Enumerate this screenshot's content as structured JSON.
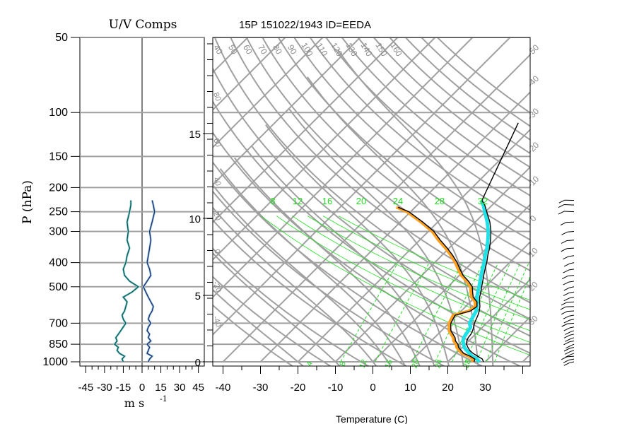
{
  "header": {
    "left_title": "U/V Comps",
    "right_title": "15P 151022/1943 ID=EEDA",
    "y_axis_label": "P (hPa)",
    "left_x_label": "m s",
    "left_x_label_exp": "-1",
    "bottom_label": "Temperature (C)"
  },
  "colors": {
    "grid": "#a0a0a0",
    "temperature": "#000000",
    "dewpoint_shade": "#ffa020",
    "virtual_shade": "#20e0e8",
    "green": "#22dd22",
    "u_component": "#2a2a7a",
    "v_component": "#0a5a5a"
  },
  "chart_data": [
    {
      "type": "line",
      "title": "U/V Comps",
      "ylabel": "P (hPa)",
      "xlabel": "m s -1",
      "y_scale": "log",
      "ylim": [
        1000,
        50
      ],
      "xlim": [
        -50,
        50
      ],
      "x_ticks": [
        "-45",
        "-30",
        "-15",
        "0",
        "15",
        "30",
        "45"
      ],
      "pressure_ticks": [
        "50",
        "100",
        "150",
        "200",
        "250",
        "300",
        "400",
        "500",
        "700",
        "850",
        "1000"
      ],
      "series": [
        {
          "color": "#2a2a7a",
          "points": [
            [
              1000,
              5
            ],
            [
              975,
              6
            ],
            [
              950,
              8
            ],
            [
              925,
              4
            ],
            [
              900,
              5
            ],
            [
              875,
              6
            ],
            [
              850,
              4
            ],
            [
              825,
              7
            ],
            [
              800,
              5
            ],
            [
              775,
              6
            ],
            [
              750,
              4
            ],
            [
              725,
              5
            ],
            [
              700,
              7
            ],
            [
              675,
              5
            ],
            [
              650,
              6
            ],
            [
              625,
              8
            ],
            [
              600,
              9
            ],
            [
              575,
              7
            ],
            [
              550,
              5
            ],
            [
              525,
              3
            ],
            [
              500,
              1
            ],
            [
              475,
              4
            ],
            [
              450,
              7
            ],
            [
              425,
              6
            ],
            [
              400,
              4
            ],
            [
              375,
              5
            ],
            [
              350,
              6
            ],
            [
              325,
              7
            ],
            [
              300,
              6
            ],
            [
              275,
              8
            ],
            [
              250,
              10
            ],
            [
              235,
              9
            ],
            [
              225,
              8
            ]
          ]
        },
        {
          "color": "#0a5a5a",
          "points": [
            [
              1000,
              -15
            ],
            [
              975,
              -16
            ],
            [
              950,
              -14
            ],
            [
              925,
              -18
            ],
            [
              900,
              -20
            ],
            [
              875,
              -19
            ],
            [
              850,
              -22
            ],
            [
              825,
              -20
            ],
            [
              800,
              -21
            ],
            [
              775,
              -19
            ],
            [
              750,
              -17
            ],
            [
              725,
              -15
            ],
            [
              700,
              -13
            ],
            [
              675,
              -15
            ],
            [
              650,
              -16
            ],
            [
              625,
              -14
            ],
            [
              600,
              -13
            ],
            [
              575,
              -12
            ],
            [
              550,
              -15
            ],
            [
              525,
              -8
            ],
            [
              500,
              -3
            ],
            [
              475,
              -10
            ],
            [
              450,
              -14
            ],
            [
              425,
              -15
            ],
            [
              400,
              -13
            ],
            [
              375,
              -12
            ],
            [
              350,
              -10
            ],
            [
              325,
              -12
            ],
            [
              300,
              -11
            ],
            [
              275,
              -12
            ],
            [
              250,
              -10
            ],
            [
              235,
              -9
            ],
            [
              225,
              -9
            ]
          ]
        }
      ]
    },
    {
      "type": "line",
      "title": "15P 151022/1943 ID=EEDA",
      "xlabel": "Temperature (C)",
      "y_scale": "log",
      "ylim": [
        1000,
        50
      ],
      "xlim": [
        -45,
        45
      ],
      "x_ticks": [
        "-40",
        "-30",
        "-20",
        "-10",
        "0",
        "10",
        "20",
        "30"
      ],
      "height_ticks_km": [
        "0",
        "5",
        "10",
        "15"
      ],
      "mixing_ratio_labels": [
        "8",
        "12",
        "16",
        "20",
        "24",
        "28",
        "32"
      ],
      "dry_adiabat_labels": [
        "40",
        "50",
        "60",
        "70",
        "80",
        "90",
        "100",
        "110",
        "120",
        "130",
        "140",
        "150",
        "160"
      ],
      "moist_adiabat_labels": [
        "50",
        "40",
        "30",
        "20",
        "10",
        "0",
        "10",
        "20",
        "30"
      ],
      "right_skew_labels": [
        "-50",
        "-40",
        "-30",
        "-20",
        "-10",
        "0",
        "10",
        "20",
        "30"
      ],
      "bottom_green_labels": [
        "4",
        "8",
        "12",
        "16",
        "20",
        "24",
        "28"
      ],
      "left_grey_labels": [
        "80",
        "60",
        "40",
        "20",
        "0",
        "-20",
        "-40"
      ],
      "temperature": [
        [
          1000,
          29.5
        ],
        [
          975,
          28.5
        ],
        [
          950,
          26.5
        ],
        [
          925,
          24.5
        ],
        [
          900,
          22.8
        ],
        [
          875,
          21.5
        ],
        [
          850,
          20.3
        ],
        [
          825,
          19.5
        ],
        [
          800,
          19.0
        ],
        [
          775,
          18.8
        ],
        [
          750,
          18.3
        ],
        [
          725,
          17.6
        ],
        [
          700,
          16.8
        ],
        [
          675,
          16.2
        ],
        [
          650,
          15.6
        ],
        [
          625,
          14.8
        ],
        [
          600,
          13.8
        ],
        [
          575,
          12.5
        ],
        [
          550,
          11.2
        ],
        [
          525,
          10.2
        ],
        [
          500,
          9.0
        ],
        [
          475,
          7.8
        ],
        [
          450,
          6.5
        ],
        [
          425,
          5.2
        ],
        [
          400,
          3.9
        ],
        [
          375,
          2.3
        ],
        [
          350,
          0.8
        ],
        [
          325,
          -1.1
        ],
        [
          300,
          -3.3
        ],
        [
          275,
          -6.1
        ],
        [
          250,
          -9.7
        ],
        [
          235,
          -12.0
        ],
        [
          225,
          -14.0
        ],
        [
          110,
          -25.0
        ]
      ],
      "temperature_shade": [
        [
          1000,
          28.5
        ],
        [
          975,
          27.0
        ],
        [
          950,
          25.0
        ],
        [
          925,
          23.5
        ],
        [
          900,
          22.0
        ],
        [
          875,
          20.5
        ],
        [
          850,
          19.5
        ],
        [
          825,
          18.5
        ],
        [
          800,
          17.8
        ],
        [
          775,
          17.5
        ],
        [
          750,
          17.2
        ],
        [
          725,
          16.8
        ],
        [
          700,
          15.5
        ],
        [
          675,
          15.0
        ],
        [
          650,
          14.5
        ],
        [
          625,
          14.0
        ],
        [
          600,
          13.0
        ],
        [
          575,
          11.8
        ],
        [
          550,
          10.5
        ],
        [
          525,
          9.4
        ],
        [
          500,
          8.3
        ],
        [
          475,
          7.1
        ],
        [
          450,
          5.8
        ],
        [
          425,
          4.5
        ],
        [
          400,
          3.2
        ],
        [
          375,
          1.6
        ],
        [
          350,
          0.1
        ],
        [
          325,
          -1.8
        ],
        [
          300,
          -4.0
        ],
        [
          275,
          -6.8
        ],
        [
          250,
          -10.2
        ],
        [
          235,
          -12.4
        ],
        [
          225,
          -14.2
        ]
      ],
      "dewpoint": [
        [
          1000,
          27.0
        ],
        [
          975,
          26.5
        ],
        [
          950,
          24.5
        ],
        [
          925,
          22.0
        ],
        [
          900,
          20.5
        ],
        [
          875,
          19.0
        ],
        [
          850,
          18.0
        ],
        [
          825,
          16.5
        ],
        [
          800,
          15.5
        ],
        [
          775,
          14.0
        ],
        [
          750,
          12.5
        ],
        [
          725,
          11.5
        ],
        [
          700,
          10.5
        ],
        [
          675,
          10.0
        ],
        [
          650,
          9.5
        ],
        [
          625,
          12.5
        ],
        [
          600,
          13.0
        ],
        [
          575,
          11.8
        ],
        [
          550,
          9.5
        ],
        [
          525,
          8.0
        ],
        [
          500,
          6.5
        ],
        [
          475,
          4.0
        ],
        [
          450,
          1.0
        ],
        [
          425,
          -1.5
        ],
        [
          400,
          -4.0
        ],
        [
          375,
          -7.0
        ],
        [
          350,
          -10.5
        ],
        [
          325,
          -14.5
        ],
        [
          300,
          -18.5
        ],
        [
          275,
          -24.0
        ],
        [
          250,
          -30.5
        ],
        [
          240,
          -34.5
        ]
      ],
      "dewpoint_shade": [
        [
          1000,
          26.5
        ],
        [
          975,
          26.0
        ],
        [
          950,
          24.0
        ],
        [
          925,
          21.5
        ],
        [
          900,
          20.0
        ],
        [
          875,
          18.5
        ],
        [
          850,
          17.5
        ],
        [
          825,
          16.0
        ],
        [
          800,
          15.0
        ],
        [
          775,
          13.5
        ],
        [
          750,
          12.0
        ],
        [
          725,
          11.0
        ],
        [
          700,
          10.0
        ],
        [
          675,
          9.5
        ],
        [
          650,
          9.0
        ],
        [
          625,
          12.0
        ],
        [
          600,
          12.5
        ],
        [
          575,
          11.3
        ],
        [
          550,
          9.0
        ],
        [
          525,
          7.5
        ],
        [
          500,
          6.0
        ],
        [
          475,
          3.5
        ],
        [
          450,
          0.5
        ],
        [
          425,
          -2.0
        ],
        [
          400,
          -4.5
        ],
        [
          375,
          -7.5
        ],
        [
          350,
          -11.0
        ],
        [
          325,
          -15.0
        ],
        [
          300,
          -19.0
        ],
        [
          275,
          -24.5
        ],
        [
          250,
          -31.0
        ],
        [
          240,
          -35.0
        ]
      ]
    }
  ]
}
